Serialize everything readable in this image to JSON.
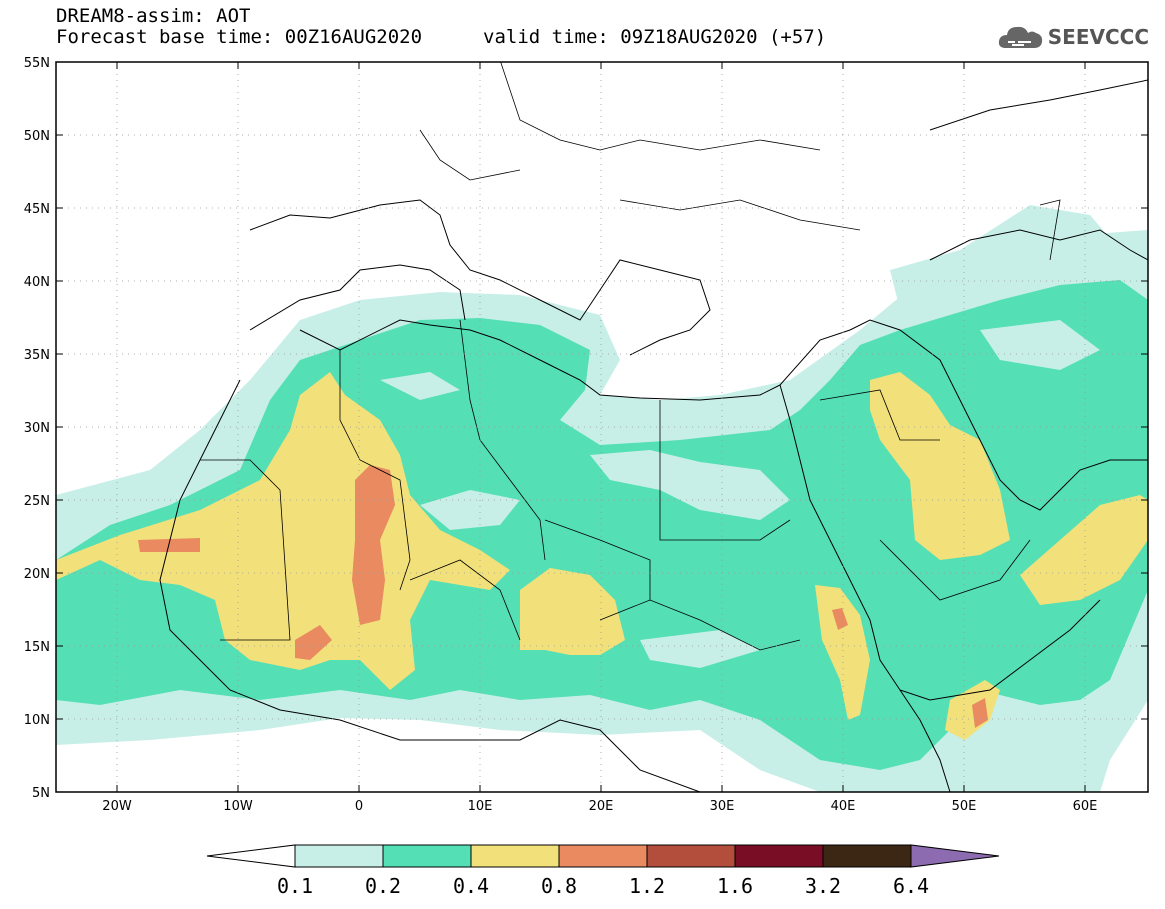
{
  "header": {
    "line1": "DREAM8-assim: AOT",
    "line2": "Forecast base time: 00Z16AUG2020",
    "valid": "valid time: 09Z18AUG2020 (+57)"
  },
  "logo": {
    "text": "SEEVCCC",
    "icon": "cloud-icon"
  },
  "map": {
    "lat_labels": [
      "55N",
      "50N",
      "45N",
      "40N",
      "35N",
      "30N",
      "25N",
      "20N",
      "15N",
      "10N",
      "5N"
    ],
    "lon_labels": [
      "20W",
      "10W",
      "0",
      "10E",
      "20E",
      "30E",
      "40E",
      "50E",
      "60E"
    ]
  },
  "colorbar": {
    "ticks": [
      "0.1",
      "0.2",
      "0.4",
      "0.8",
      "1.2",
      "1.6",
      "3.2",
      "6.4"
    ],
    "colors": [
      "#ffffff",
      "#c7efe8",
      "#55dfb5",
      "#f2e17a",
      "#e98a61",
      "#b24e3b",
      "#7a0d26",
      "#3b2713",
      "#8d6bb0"
    ]
  },
  "palette": {
    "low": "#c7efe8",
    "mid": "#55dfb5",
    "high": "#f2e17a",
    "higher": "#e98a61",
    "peak": "#b24e3b"
  }
}
